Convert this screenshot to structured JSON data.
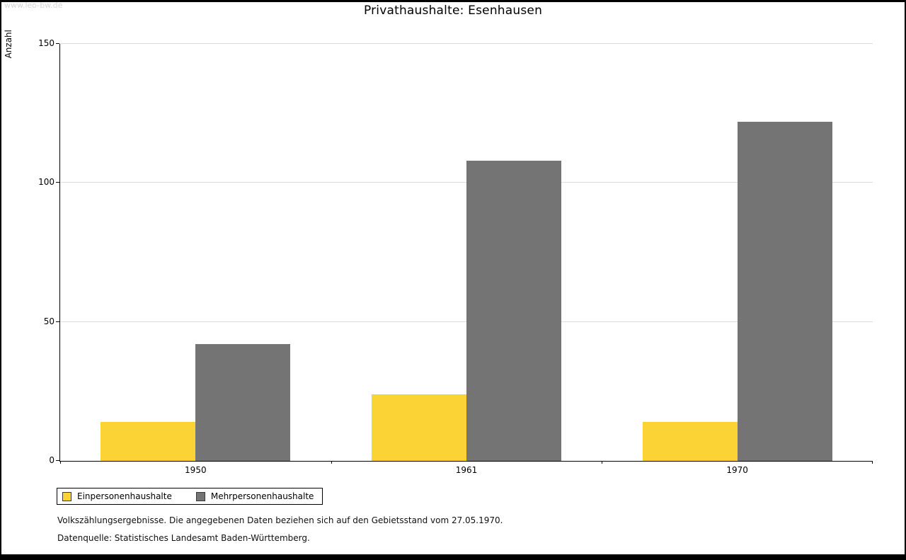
{
  "page": {
    "watermark": "www.leo-bw.de"
  },
  "chart_data": {
    "type": "bar",
    "title": "Privathaushalte: Esenhausen",
    "ylabel": "Anzahl",
    "xlabel": "",
    "categories": [
      "1950",
      "1961",
      "1970"
    ],
    "series": [
      {
        "name": "Einpersonenhaushalte",
        "color": "#fbd335",
        "values": [
          14,
          24,
          14
        ]
      },
      {
        "name": "Mehrpersonenhaushalte",
        "color": "#747474",
        "values": [
          42,
          108,
          122
        ]
      }
    ],
    "ylim": [
      0,
      150
    ],
    "yticks": [
      0,
      50,
      100,
      150
    ],
    "grid": true,
    "legend_position": "bottom-left"
  },
  "footnotes": {
    "line1": "Volkszählungsergebnisse. Die angegebenen Daten beziehen sich auf den Gebietsstand vom 27.05.1970.",
    "line2": "Datenquelle: Statistisches Landesamt Baden-Württemberg."
  }
}
